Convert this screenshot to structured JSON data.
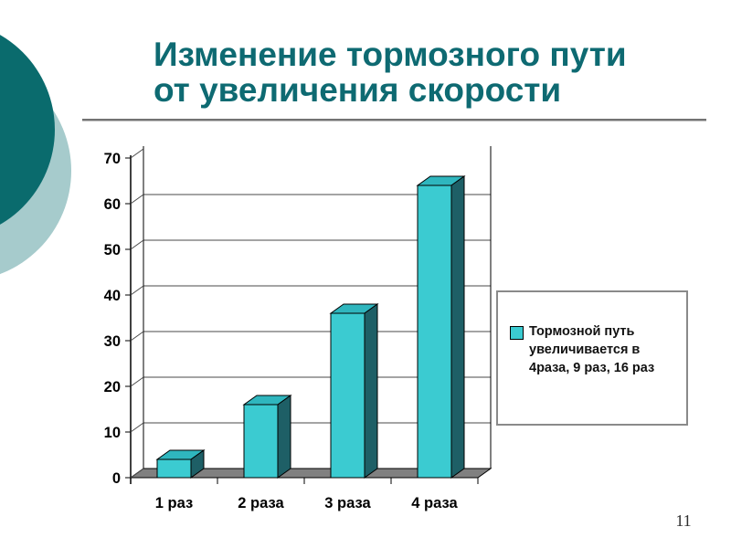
{
  "slide": {
    "title_line1": "Изменение тормозного пути",
    "title_line2": "от увеличения скорости",
    "page_number": "11"
  },
  "legend": {
    "label": "Тормозной путь увеличивается в 4раза, 9 раз, 16 раз",
    "marker_color": "#3bcbd1"
  },
  "chart_data": {
    "type": "bar",
    "style": "3d-column",
    "categories": [
      "1 раз",
      "2 раза",
      "3 раза",
      "4 раза"
    ],
    "series": [
      {
        "name": "Тормозной путь увеличивается в 4раза, 9 раз, 16 раз",
        "values": [
          4,
          16,
          36,
          64
        ]
      }
    ],
    "title": "",
    "xlabel": "",
    "ylabel": "",
    "ylim": [
      0,
      70
    ],
    "yticks": [
      0,
      10,
      20,
      30,
      40,
      50,
      60,
      70
    ],
    "grid": true,
    "legend_position": "right",
    "colors": {
      "bar_front": "#3bcbd1",
      "bar_top": "#2fb6be",
      "bar_side": "#1e5f66",
      "floor": "#808080",
      "grid_line": "#4a4a4a",
      "axis": "#000000"
    }
  },
  "decor": {
    "dark_circle_color": "#0a6b6d",
    "light_circle_color": "#a6cbcc",
    "title_color": "#0e6a72"
  }
}
